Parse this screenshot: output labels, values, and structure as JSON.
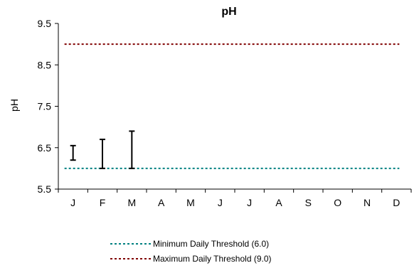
{
  "chart_data": {
    "type": "line",
    "title": "pH",
    "ylabel": "pH",
    "xlabel": "",
    "categories": [
      "J",
      "F",
      "M",
      "A",
      "M",
      "J",
      "J",
      "A",
      "S",
      "O",
      "N",
      "D"
    ],
    "ylim": [
      5.5,
      9.5
    ],
    "yticks": [
      "5.5",
      "6.5",
      "7.5",
      "8.5",
      "9.5"
    ],
    "grid": false,
    "ranges": [
      {
        "category": "J",
        "min": 6.2,
        "max": 6.55
      },
      {
        "category": "F",
        "min": 6.0,
        "max": 6.7
      },
      {
        "category": "M",
        "min": 6.0,
        "max": 6.9
      }
    ],
    "thresholds": [
      {
        "name": "Minimum Daily Threshold (6.0)",
        "value": 6.0,
        "color": "#008080"
      },
      {
        "name": "Maximum Daily Threshold (9.0)",
        "value": 9.0,
        "color": "#800000"
      }
    ],
    "legend_position": "bottom"
  }
}
